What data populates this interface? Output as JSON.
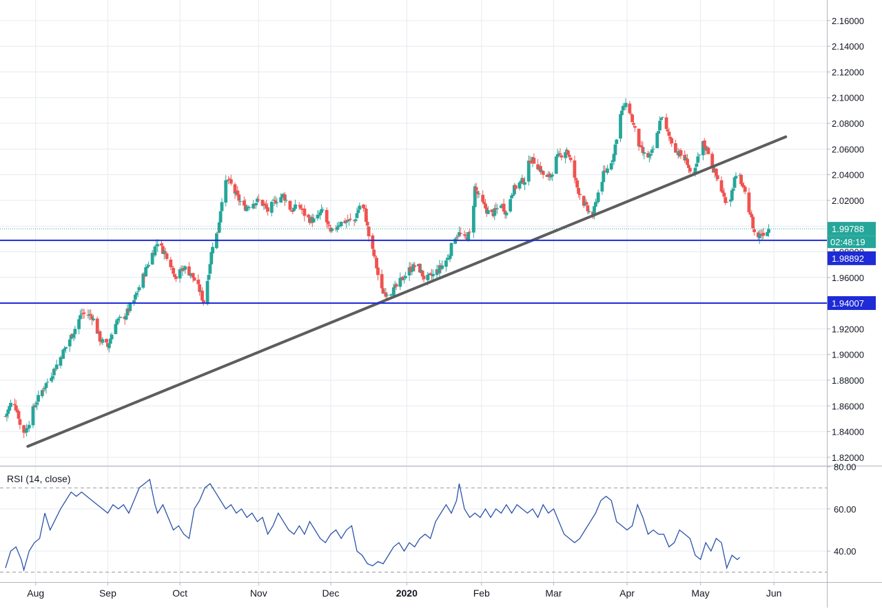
{
  "chart_data": [
    {
      "type": "candlestick",
      "name_shown": "",
      "y_ticks": [
        "2.16000",
        "2.14000",
        "2.12000",
        "2.10000",
        "2.08000",
        "2.06000",
        "2.04000",
        "2.02000",
        "2.00000",
        "1.98000",
        "1.96000",
        "1.94000",
        "1.92000",
        "1.90000",
        "1.88000",
        "1.86000",
        "1.84000",
        "1.82000"
      ],
      "ylim": [
        1.8135,
        2.176
      ],
      "x_ticks": [
        "Aug",
        "Sep",
        "Oct",
        "Nov",
        "Dec",
        "2020",
        "Feb",
        "Mar",
        "Apr",
        "May",
        "Jun"
      ],
      "grid": true,
      "up_color": "#26a69a",
      "down_color": "#ef5350",
      "candle_anchors": [
        [
          0,
          1.852
        ],
        [
          6,
          1.866
        ],
        [
          10,
          1.852
        ],
        [
          12,
          1.838
        ],
        [
          16,
          1.842
        ],
        [
          22,
          1.86
        ],
        [
          28,
          1.872
        ],
        [
          36,
          1.886
        ],
        [
          44,
          1.902
        ],
        [
          52,
          1.918
        ],
        [
          58,
          1.932
        ],
        [
          66,
          1.93
        ],
        [
          72,
          1.912
        ],
        [
          78,
          1.906
        ],
        [
          84,
          1.926
        ],
        [
          90,
          1.928
        ],
        [
          98,
          1.942
        ],
        [
          104,
          1.958
        ],
        [
          110,
          1.974
        ],
        [
          116,
          1.988
        ],
        [
          118,
          1.984
        ],
        [
          124,
          1.976
        ],
        [
          130,
          1.96
        ],
        [
          136,
          1.968
        ],
        [
          142,
          1.962
        ],
        [
          148,
          1.95
        ],
        [
          152,
          1.938
        ],
        [
          154,
          1.958
        ],
        [
          158,
          1.986
        ],
        [
          162,
          1.996
        ],
        [
          166,
          2.03
        ],
        [
          170,
          2.036
        ],
        [
          176,
          2.024
        ],
        [
          182,
          2.014
        ],
        [
          188,
          2.018
        ],
        [
          194,
          2.02
        ],
        [
          200,
          2.012
        ],
        [
          206,
          2.02
        ],
        [
          212,
          2.024
        ],
        [
          218,
          2.012
        ],
        [
          224,
          2.016
        ],
        [
          230,
          2.006
        ],
        [
          236,
          2.004
        ],
        [
          242,
          2.012
        ],
        [
          248,
          1.994
        ],
        [
          254,
          2.002
        ],
        [
          260,
          2.004
        ],
        [
          266,
          2.004
        ],
        [
          270,
          2.016
        ],
        [
          274,
          2.012
        ],
        [
          278,
          1.986
        ],
        [
          282,
          1.974
        ],
        [
          286,
          1.95
        ],
        [
          290,
          1.948
        ],
        [
          296,
          1.95
        ],
        [
          302,
          1.958
        ],
        [
          308,
          1.966
        ],
        [
          314,
          1.97
        ],
        [
          320,
          1.958
        ],
        [
          326,
          1.962
        ],
        [
          332,
          1.968
        ],
        [
          338,
          1.976
        ],
        [
          342,
          1.992
        ],
        [
          346,
          1.994
        ],
        [
          350,
          1.99
        ],
        [
          354,
          1.994
        ],
        [
          356,
          2.006
        ],
        [
          358,
          2.03
        ],
        [
          362,
          2.02
        ],
        [
          366,
          2.014
        ],
        [
          370,
          2.008
        ],
        [
          374,
          2.012
        ],
        [
          378,
          2.018
        ],
        [
          382,
          2.01
        ],
        [
          386,
          2.026
        ],
        [
          390,
          2.032
        ],
        [
          396,
          2.036
        ],
        [
          400,
          2.052
        ],
        [
          404,
          2.05
        ],
        [
          408,
          2.044
        ],
        [
          412,
          2.036
        ],
        [
          416,
          2.04
        ],
        [
          420,
          2.052
        ],
        [
          424,
          2.056
        ],
        [
          428,
          2.06
        ],
        [
          432,
          2.046
        ],
        [
          436,
          2.03
        ],
        [
          440,
          2.02
        ],
        [
          444,
          2.012
        ],
        [
          448,
          2.008
        ],
        [
          452,
          2.026
        ],
        [
          456,
          2.04
        ],
        [
          460,
          2.046
        ],
        [
          464,
          2.056
        ],
        [
          468,
          2.084
        ],
        [
          472,
          2.094
        ],
        [
          476,
          2.09
        ],
        [
          480,
          2.074
        ],
        [
          484,
          2.06
        ],
        [
          488,
          2.054
        ],
        [
          492,
          2.054
        ],
        [
          496,
          2.066
        ],
        [
          500,
          2.086
        ],
        [
          504,
          2.074
        ],
        [
          508,
          2.066
        ],
        [
          512,
          2.058
        ],
        [
          516,
          2.054
        ],
        [
          520,
          2.05
        ],
        [
          524,
          2.034
        ],
        [
          528,
          2.052
        ],
        [
          532,
          2.064
        ],
        [
          536,
          2.058
        ],
        [
          540,
          2.044
        ],
        [
          544,
          2.034
        ],
        [
          548,
          2.022
        ],
        [
          552,
          2.018
        ],
        [
          556,
          2.036
        ],
        [
          560,
          2.038
        ],
        [
          564,
          2.024
        ],
        [
          568,
          2.01
        ],
        [
          572,
          1.99
        ],
        [
          576,
          1.994
        ],
        [
          580,
          1.996
        ],
        [
          582,
          1.998
        ]
      ],
      "last_price": "1.99788",
      "countdown": "02:48:19",
      "horizontal_levels": [
        {
          "value": 1.98892,
          "label": "1.98892"
        },
        {
          "value": 1.94007,
          "label": "1.94007"
        }
      ],
      "trendline": {
        "from": {
          "x": 17,
          "y": 1.8285
        },
        "to": {
          "x": 595,
          "y": 2.0695
        }
      },
      "colors": {
        "level": "#1e2bd6",
        "last_price": "#26a69a",
        "trendline": "#5d5d5d",
        "grid": "#e6eaef"
      }
    },
    {
      "type": "line",
      "title": "RSI (14, close)",
      "y_ticks": [
        "80.00",
        "60.00",
        "40.00"
      ],
      "ylim": [
        25.3,
        80.2
      ],
      "reference_lines": [
        70,
        30
      ],
      "series": [
        {
          "color": "#2a52a8",
          "points": [
            [
              0,
              32
            ],
            [
              4,
              40
            ],
            [
              8,
              42
            ],
            [
              12,
              36
            ],
            [
              14,
              31
            ],
            [
              18,
              40
            ],
            [
              22,
              44
            ],
            [
              26,
              46
            ],
            [
              30,
              58
            ],
            [
              34,
              50
            ],
            [
              38,
              55
            ],
            [
              42,
              60
            ],
            [
              46,
              64
            ],
            [
              50,
              68
            ],
            [
              54,
              66
            ],
            [
              58,
              68
            ],
            [
              62,
              66
            ],
            [
              66,
              64
            ],
            [
              70,
              62
            ],
            [
              74,
              60
            ],
            [
              78,
              58
            ],
            [
              82,
              62
            ],
            [
              86,
              60
            ],
            [
              90,
              62
            ],
            [
              94,
              58
            ],
            [
              98,
              64
            ],
            [
              102,
              70
            ],
            [
              106,
              72
            ],
            [
              110,
              74
            ],
            [
              114,
              62
            ],
            [
              116,
              58
            ],
            [
              120,
              62
            ],
            [
              124,
              56
            ],
            [
              128,
              50
            ],
            [
              132,
              52
            ],
            [
              136,
              48
            ],
            [
              140,
              46
            ],
            [
              144,
              60
            ],
            [
              148,
              64
            ],
            [
              152,
              70
            ],
            [
              156,
              72
            ],
            [
              160,
              68
            ],
            [
              164,
              64
            ],
            [
              168,
              60
            ],
            [
              172,
              62
            ],
            [
              176,
              58
            ],
            [
              180,
              60
            ],
            [
              184,
              56
            ],
            [
              188,
              58
            ],
            [
              192,
              54
            ],
            [
              196,
              56
            ],
            [
              200,
              48
            ],
            [
              204,
              52
            ],
            [
              208,
              58
            ],
            [
              212,
              54
            ],
            [
              216,
              50
            ],
            [
              220,
              48
            ],
            [
              224,
              52
            ],
            [
              228,
              48
            ],
            [
              232,
              54
            ],
            [
              236,
              50
            ],
            [
              240,
              46
            ],
            [
              244,
              44
            ],
            [
              248,
              48
            ],
            [
              252,
              50
            ],
            [
              256,
              46
            ],
            [
              260,
              50
            ],
            [
              264,
              52
            ],
            [
              268,
              40
            ],
            [
              272,
              38
            ],
            [
              276,
              34
            ],
            [
              280,
              33
            ],
            [
              284,
              35
            ],
            [
              288,
              34
            ],
            [
              292,
              38
            ],
            [
              296,
              42
            ],
            [
              300,
              44
            ],
            [
              304,
              40
            ],
            [
              308,
              44
            ],
            [
              312,
              42
            ],
            [
              316,
              46
            ],
            [
              320,
              48
            ],
            [
              324,
              46
            ],
            [
              328,
              54
            ],
            [
              332,
              58
            ],
            [
              336,
              62
            ],
            [
              340,
              58
            ],
            [
              344,
              64
            ],
            [
              346,
              72
            ],
            [
              350,
              60
            ],
            [
              354,
              56
            ],
            [
              358,
              58
            ],
            [
              362,
              56
            ],
            [
              366,
              60
            ],
            [
              370,
              56
            ],
            [
              374,
              60
            ],
            [
              378,
              58
            ],
            [
              382,
              62
            ],
            [
              386,
              58
            ],
            [
              390,
              62
            ],
            [
              394,
              60
            ],
            [
              398,
              58
            ],
            [
              402,
              60
            ],
            [
              406,
              56
            ],
            [
              410,
              62
            ],
            [
              414,
              58
            ],
            [
              418,
              60
            ],
            [
              422,
              54
            ],
            [
              426,
              48
            ],
            [
              430,
              46
            ],
            [
              434,
              44
            ],
            [
              438,
              46
            ],
            [
              442,
              50
            ],
            [
              446,
              54
            ],
            [
              450,
              58
            ],
            [
              454,
              64
            ],
            [
              458,
              66
            ],
            [
              462,
              64
            ],
            [
              466,
              54
            ],
            [
              470,
              52
            ],
            [
              474,
              50
            ],
            [
              478,
              52
            ],
            [
              482,
              62
            ],
            [
              486,
              56
            ],
            [
              490,
              48
            ],
            [
              494,
              50
            ],
            [
              498,
              48
            ],
            [
              502,
              48
            ],
            [
              506,
              42
            ],
            [
              510,
              44
            ],
            [
              514,
              50
            ],
            [
              518,
              48
            ],
            [
              522,
              46
            ],
            [
              526,
              38
            ],
            [
              530,
              36
            ],
            [
              534,
              44
            ],
            [
              538,
              40
            ],
            [
              542,
              46
            ],
            [
              546,
              44
            ],
            [
              550,
              32
            ],
            [
              554,
              38
            ],
            [
              558,
              36
            ],
            [
              560,
              37
            ]
          ]
        }
      ]
    }
  ]
}
